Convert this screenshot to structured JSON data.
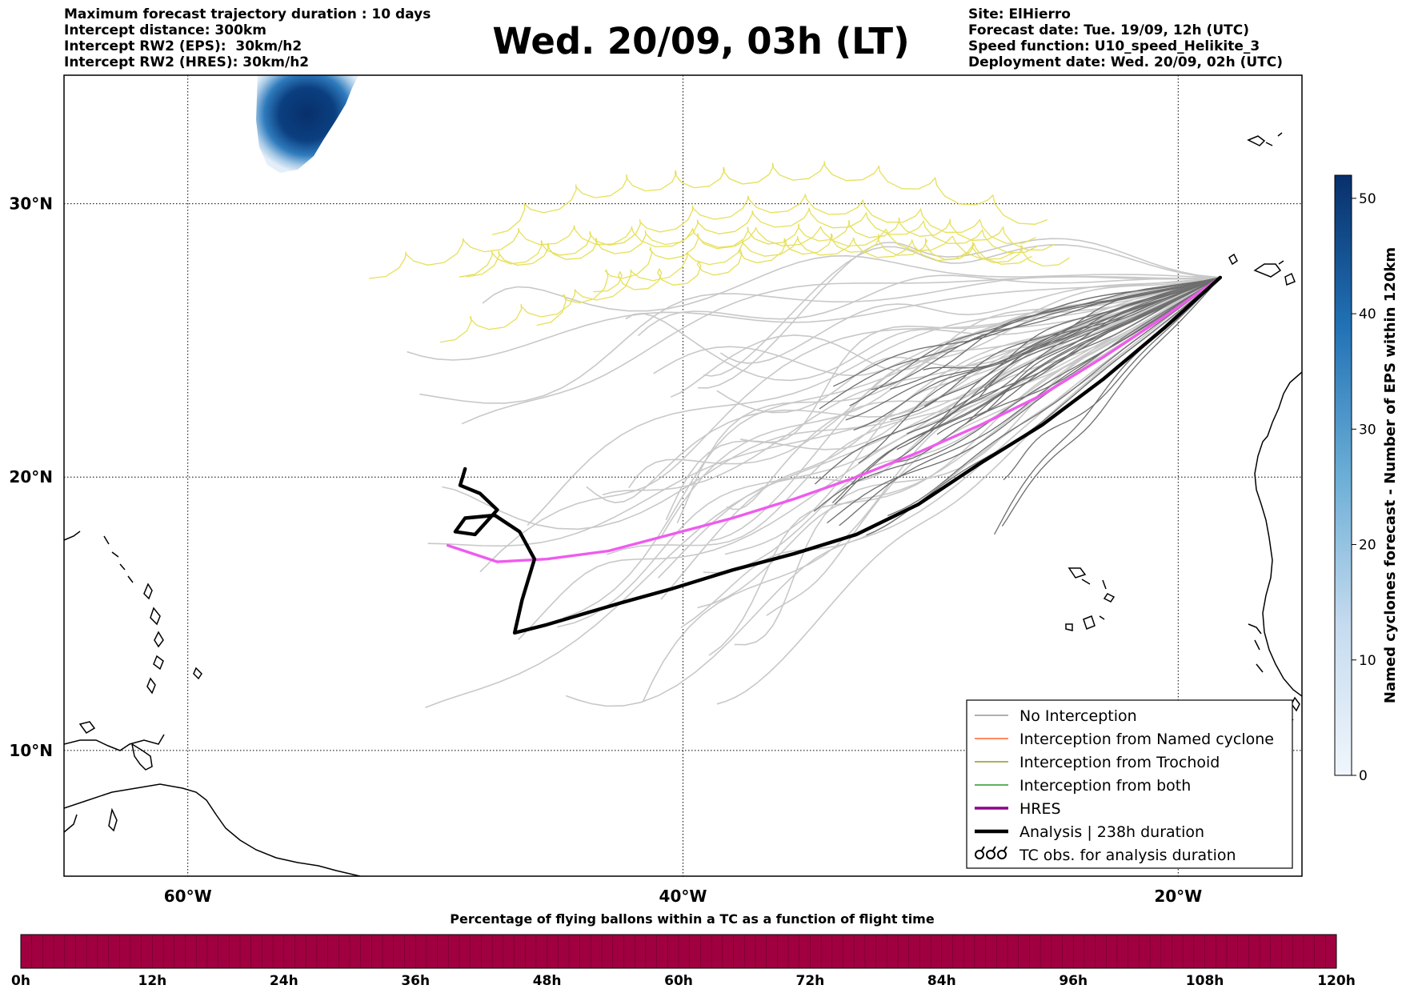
{
  "header": {
    "left": [
      "Maximum forecast trajectory duration : 10 days",
      "Intercept distance: 300km",
      "Intercept RW2 (EPS):  30km/h2",
      "Intercept RW2 (HRES): 30km/h2"
    ],
    "title": "Wed. 20/09, 03h (LT)",
    "right": [
      "Site: ElHierro",
      "Forecast date: Tue. 19/09, 12h (UTC)",
      "Speed function: U10_speed_Helikite_3",
      "Deployment date: Wed. 20/09, 02h (UTC)"
    ]
  },
  "map": {
    "lon_labels": [
      "60°W",
      "40°W",
      "20°W"
    ],
    "lat_labels": [
      "30°N",
      "20°N",
      "10°N"
    ],
    "lon_range": [
      -65,
      -15
    ],
    "lat_range": [
      5.4,
      34.7
    ]
  },
  "legend": {
    "items": [
      {
        "label": "No Interception",
        "color": "#808080"
      },
      {
        "label": "Interception from Named cyclone",
        "color": "#ff4500"
      },
      {
        "label": "Interception from Trochoid",
        "color": "#808000"
      },
      {
        "label": "Interception from both",
        "color": "#008000"
      },
      {
        "label": "HRES",
        "color": "#8b008b"
      },
      {
        "label": "Analysis | 238h duration",
        "color": "#000000"
      },
      {
        "label": "TC obs. for analysis duration",
        "color": "#000000"
      }
    ]
  },
  "colorbar": {
    "label": "Named cyclones forecast - Number of EPS within 120km",
    "ticks": [
      "0",
      "10",
      "20",
      "30",
      "40",
      "50"
    ],
    "range": [
      0,
      52
    ]
  },
  "bottom_bar": {
    "title": "Percentage of flying ballons within a TC as a function of flight time",
    "ticks": [
      "0h",
      "12h",
      "24h",
      "36h",
      "48h",
      "60h",
      "72h",
      "84h",
      "96h",
      "108h",
      "120h"
    ],
    "color": "#a0003f"
  },
  "colors": {
    "hres": "#ee5bee",
    "analysis": "#000000",
    "eps_light": "#c8c8c8",
    "eps_dark": "#6e6e6e",
    "trochoid": "#e6e05a",
    "cyclone_blob": "#0b3a77"
  },
  "chart_data": {
    "type": "line",
    "start": {
      "lon": -18.3,
      "lat": 27.3
    },
    "series": [
      {
        "name": "HRES",
        "lon": [
          -18.3,
          -20.5,
          -23,
          -25.5,
          -28,
          -30.5,
          -33,
          -35.5,
          -38,
          -40.5,
          -43,
          -45.5,
          -47.5,
          -49.5
        ],
        "lat": [
          27.3,
          25.9,
          24.4,
          23.0,
          21.9,
          20.9,
          20.0,
          19.2,
          18.5,
          17.9,
          17.3,
          17.0,
          16.9,
          17.5
        ]
      },
      {
        "name": "Analysis | 238h duration",
        "lon": [
          -18.3,
          -20.5,
          -23,
          -25.5,
          -28,
          -30.5,
          -33,
          -35.5,
          -38,
          -40.5,
          -42.5,
          -44,
          -45.5,
          -46.8,
          -46.5,
          -46.0,
          -46.6,
          -47.6,
          -48.8,
          -49.2,
          -48.4,
          -47.5,
          -48.2,
          -49.0,
          -48.8
        ],
        "lat": [
          27.3,
          25.5,
          23.6,
          21.9,
          20.5,
          19.0,
          17.9,
          17.2,
          16.6,
          15.9,
          15.4,
          15.0,
          14.6,
          14.3,
          15.5,
          17.0,
          18.0,
          18.6,
          18.5,
          18.0,
          17.9,
          18.8,
          19.4,
          19.7,
          20.3
        ]
      }
    ]
  }
}
